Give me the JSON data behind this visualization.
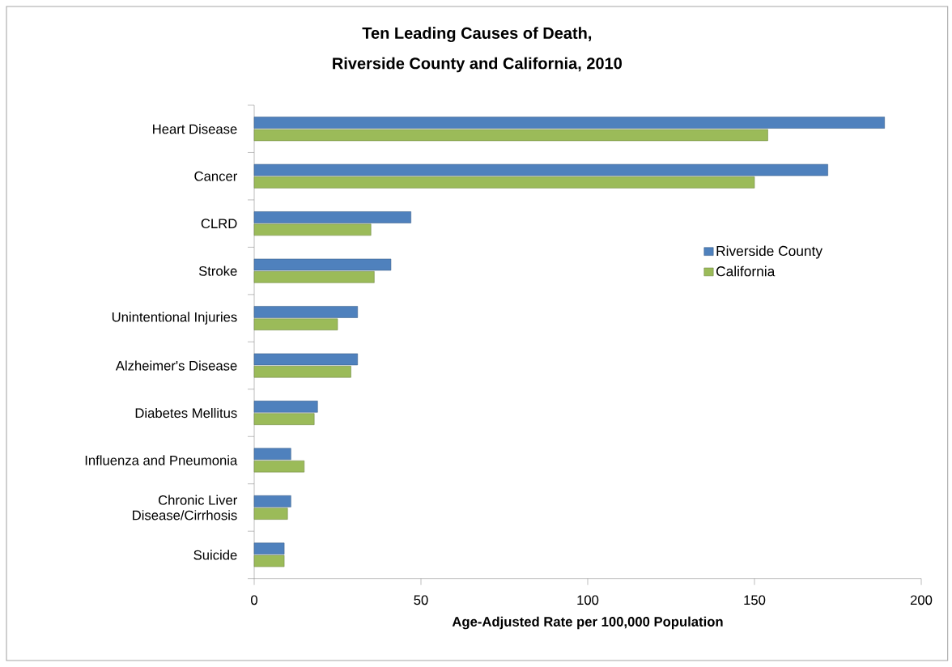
{
  "chart_data": {
    "type": "bar",
    "orientation": "horizontal",
    "title": "Ten Leading Causes of Death,",
    "subtitle": "Riverside County and California, 2010",
    "xlabel": "Age-Adjusted Rate per 100,000 Population",
    "categories": [
      "Heart Disease",
      "Cancer",
      "CLRD",
      "Stroke",
      "Unintentional Injuries",
      "Alzheimer's Disease",
      "Diabetes Mellitus",
      "Influenza and Pneumonia",
      "Chronic Liver Disease/Cirrhosis",
      "Suicide"
    ],
    "series": [
      {
        "name": "Riverside County",
        "color": "#4f81bd",
        "values": [
          189,
          172,
          47,
          41,
          31,
          31,
          19,
          11,
          11,
          9
        ]
      },
      {
        "name": "California",
        "color": "#9bbb59",
        "values": [
          154,
          150,
          35,
          36,
          25,
          29,
          18,
          15,
          10,
          9
        ]
      }
    ],
    "xlim": [
      0,
      200
    ],
    "xticks": [
      0,
      50,
      100,
      150,
      200
    ],
    "grid": false,
    "legend": "right"
  }
}
